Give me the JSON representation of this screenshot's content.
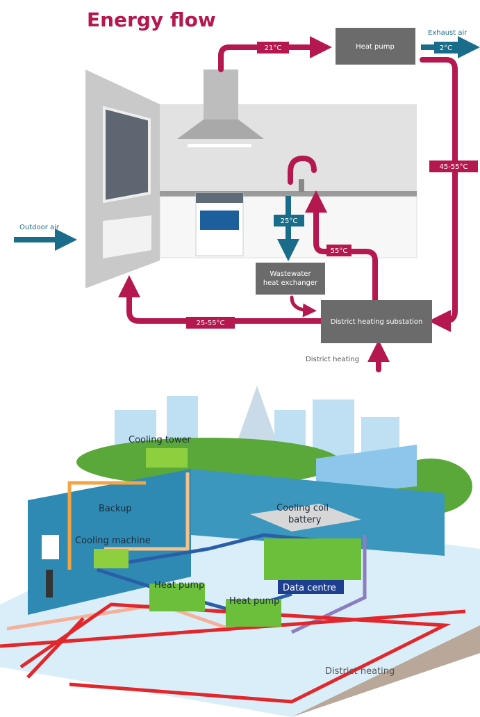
{
  "energy_flow": {
    "title": "Energy flow",
    "labels": {
      "hood_temp": "21°C",
      "heat_pump": "Heat pump",
      "exhaust_air": "Exhaust air",
      "exhaust_temp": "2°C",
      "return_temp": "45-55°C",
      "outdoor_air": "Outdoor air",
      "wastewater_temp": "25°C",
      "hot_water_temp": "55°C",
      "wastewater_exchanger": [
        "Wastewater",
        "heat exchanger"
      ],
      "substation": "District heating substation",
      "radiator_temp": "25-55°C",
      "district_heating": "District heating"
    }
  },
  "data_centre": {
    "labels": {
      "cooling_tower": "Cooling tower",
      "backup": "Backup",
      "cooling_machine": "Cooling machine",
      "cooling_coil": [
        "Cooling coil",
        "battery"
      ],
      "data_centre": "Data centre",
      "heat_pump_1": "Heat pump",
      "heat_pump_2": "Heat pump",
      "district_heating": "District heating"
    }
  }
}
